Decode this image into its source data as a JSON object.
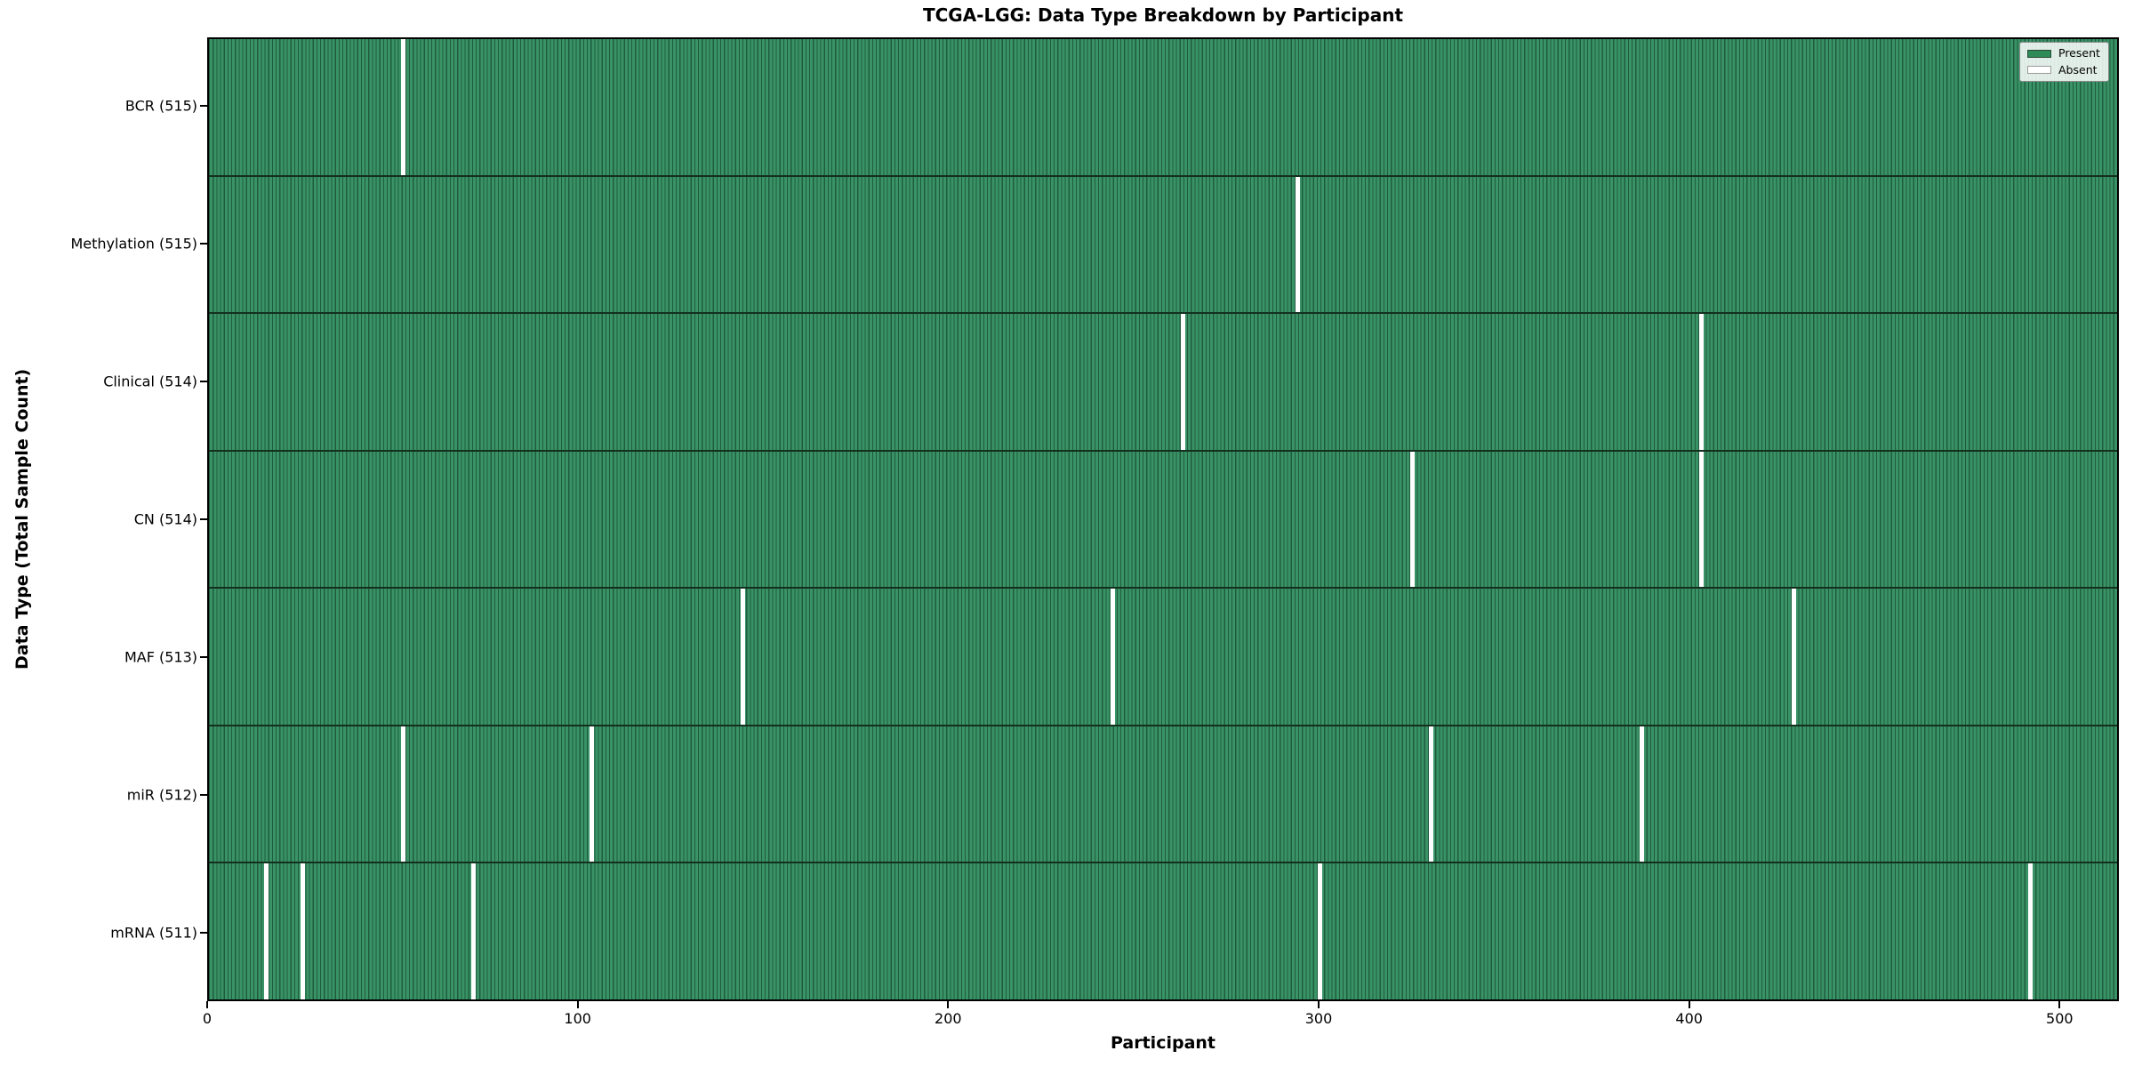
{
  "title": "TCGA-LGG: Data Type Breakdown by Participant",
  "axes": {
    "xlabel": "Participant",
    "ylabel": "Data Type (Total Sample Count)"
  },
  "legend": {
    "present_label": "Present",
    "absent_label": "Absent"
  },
  "colors": {
    "present_fill": "#3a9366",
    "present_edge": "#1e5c3e",
    "absent": "#ffffff",
    "legend_present_swatch": "#2e8b57",
    "row_divider": "#13301f"
  },
  "chart_data": {
    "type": "heatmap",
    "title": "TCGA-LGG: Data Type Breakdown by Participant",
    "xlabel": "Participant",
    "ylabel": "Data Type (Total Sample Count)",
    "legend_entries": [
      "Present",
      "Absent"
    ],
    "legend_position": "upper right",
    "x_ticks": [
      0,
      100,
      200,
      300,
      400,
      500
    ],
    "x_range": [
      0,
      516
    ],
    "total_participants": 516,
    "grid": false,
    "rows": [
      {
        "label": "BCR (515)",
        "name": "BCR",
        "present_count": 515,
        "absent_participants": [
          52
        ]
      },
      {
        "label": "Methylation (515)",
        "name": "Methylation",
        "present_count": 515,
        "absent_participants": [
          294
        ]
      },
      {
        "label": "Clinical (514)",
        "name": "Clinical",
        "present_count": 514,
        "absent_participants": [
          263,
          403
        ]
      },
      {
        "label": "CN (514)",
        "name": "CN",
        "present_count": 514,
        "absent_participants": [
          325,
          403
        ]
      },
      {
        "label": "MAF (513)",
        "name": "MAF",
        "present_count": 513,
        "absent_participants": [
          144,
          244,
          428
        ]
      },
      {
        "label": "miR (512)",
        "name": "miR",
        "present_count": 512,
        "absent_participants": [
          52,
          103,
          330,
          387
        ]
      },
      {
        "label": "mRNA (511)",
        "name": "mRNA",
        "present_count": 511,
        "absent_participants": [
          15,
          25,
          71,
          300,
          492
        ]
      }
    ]
  }
}
